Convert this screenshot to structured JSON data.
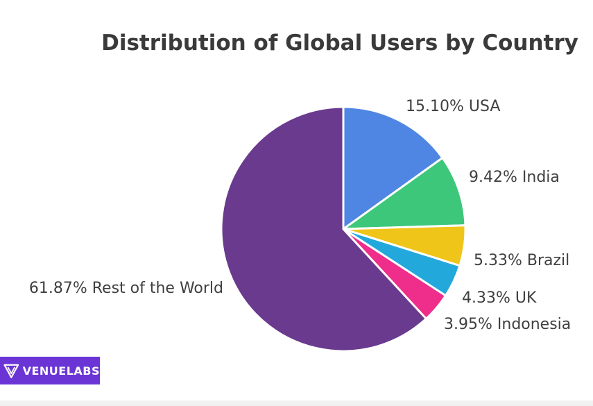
{
  "chart_data": {
    "type": "pie",
    "title": "Distribution of Global Users by Country",
    "slices": [
      {
        "label": "15.10% USA",
        "name": "USA",
        "value": 15.1,
        "color": "#4f86e3"
      },
      {
        "label": "9.42% India",
        "name": "India",
        "value": 9.42,
        "color": "#3dc77a"
      },
      {
        "label": "5.33% Brazil",
        "name": "Brazil",
        "value": 5.33,
        "color": "#efc51a"
      },
      {
        "label": "4.33% UK",
        "name": "UK",
        "value": 4.33,
        "color": "#23a8dc"
      },
      {
        "label": "3.95% Indonesia",
        "name": "Indonesia",
        "value": 3.95,
        "color": "#ef2d8a"
      },
      {
        "label": "61.87% Rest of the World",
        "name": "Rest of the World",
        "value": 61.87,
        "color": "#6a3a8e"
      }
    ],
    "start": "12 o'clock",
    "direction": "clockwise"
  },
  "watermark": {
    "text_light": "VENUE",
    "text_bold": "LABS",
    "icon": "venuelabs-v-logo-icon",
    "color": "#6b35d6"
  }
}
